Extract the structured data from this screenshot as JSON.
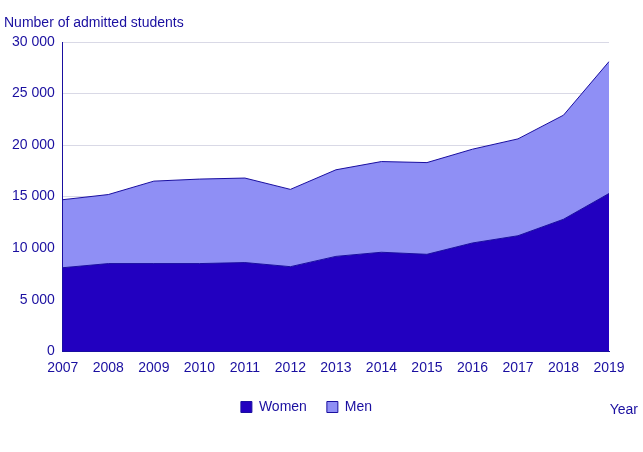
{
  "chart_data": {
    "type": "area",
    "stacked": true,
    "grid": true,
    "legend": "bottom",
    "y_label": "Number of admitted students",
    "x_label": "Year",
    "categories": [
      "2007",
      "2008",
      "2009",
      "2010",
      "2011",
      "2012",
      "2013",
      "2014",
      "2015",
      "2016",
      "2017",
      "2018",
      "2019"
    ],
    "series": [
      {
        "name": "Women",
        "color": "#2200c0",
        "values": [
          8100,
          8500,
          8500,
          8500,
          8600,
          8200,
          9200,
          9600,
          9400,
          10500,
          11200,
          12800,
          15300
        ]
      },
      {
        "name": "Men",
        "color": "#8f8ff5",
        "values": [
          6600,
          6700,
          8000,
          8200,
          8200,
          7500,
          8400,
          8800,
          8900,
          9100,
          9400,
          10100,
          12800
        ]
      }
    ],
    "ylim": [
      0,
      30000
    ],
    "yticks": [
      0,
      {
        "value": 5000,
        "label": "5 000"
      },
      {
        "value": 10000,
        "label": "10 000"
      },
      {
        "value": 15000,
        "label": "15 000"
      },
      {
        "value": 20000,
        "label": "20 000"
      },
      {
        "value": 25000,
        "label": "25 000"
      },
      {
        "value": 30000,
        "label": "30 000"
      }
    ]
  }
}
